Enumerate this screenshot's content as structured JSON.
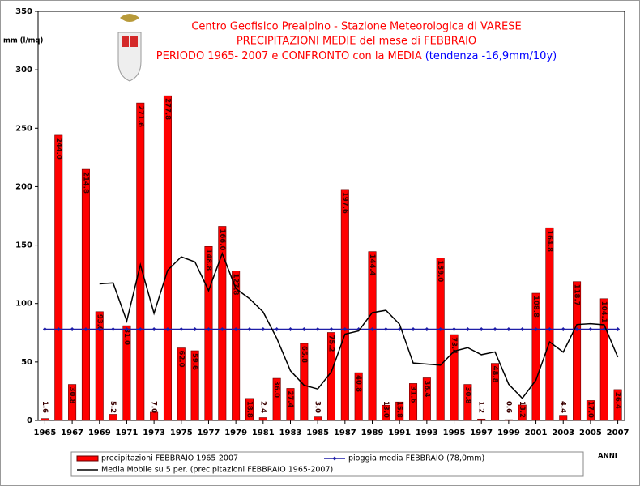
{
  "chart_data": {
    "type": "bar",
    "title": [
      "Centro Geofisico Prealpino - Stazione Meteorologica di VARESE",
      "PRECIPITAZIONI MEDIE del mese di FEBBRAIO"
    ],
    "period": "PERIODO 1965- 2007 e CONFRONTO con la MEDIA",
    "trend": "(tendenza -16,9mm/10y)",
    "y_label": "mm (l/mq)",
    "x_label": "ANNI",
    "x": [
      1965,
      1966,
      1967,
      1968,
      1969,
      1970,
      1971,
      1972,
      1973,
      1974,
      1975,
      1976,
      1977,
      1978,
      1979,
      1980,
      1981,
      1982,
      1983,
      1984,
      1985,
      1986,
      1987,
      1988,
      1989,
      1990,
      1991,
      1992,
      1993,
      1994,
      1995,
      1996,
      1997,
      1998,
      1999,
      2000,
      2001,
      2002,
      2003,
      2004,
      2005,
      2006,
      2007
    ],
    "xlim": [
      1964.5,
      2007.5
    ],
    "xticks": [
      1965,
      1967,
      1969,
      1971,
      1973,
      1975,
      1977,
      1979,
      1981,
      1983,
      1985,
      1987,
      1989,
      1991,
      1993,
      1995,
      1997,
      1999,
      2001,
      2003,
      2005,
      2007
    ],
    "ylim": [
      0,
      350
    ],
    "yticks": [
      0,
      50,
      100,
      150,
      200,
      250,
      300,
      350
    ],
    "series": [
      {
        "name": "precipitazioni FEBBRAIO 1965-2007",
        "color": "#ff0000",
        "type": "bar",
        "values": [
          1.6,
          244.0,
          30.8,
          214.8,
          93.0,
          5.2,
          81.0,
          271.6,
          7.0,
          277.8,
          62.0,
          59.6,
          148.8,
          166.0,
          127.8,
          18.8,
          2.4,
          36.0,
          27.4,
          65.8,
          3.0,
          75.2,
          197.6,
          40.8,
          144.4,
          13.0,
          15.8,
          31.6,
          36.4,
          139.0,
          73.4,
          30.8,
          1.2,
          48.8,
          0.6,
          13.2,
          108.8,
          164.8,
          4.4,
          118.7,
          17.0,
          104.1,
          26.4
        ],
        "value_labels": [
          "1.6",
          "244.0",
          "30.8",
          "214.8",
          "93.0",
          "5.2",
          "81.0",
          "271.6",
          "7.0",
          "277.8",
          "62.0",
          "59.6",
          "148.8",
          "166.0",
          "127.8",
          "18.8",
          "2.4",
          "36.0",
          "27.4",
          "65.8",
          "3.0",
          "75.2",
          "197.6",
          "40.8",
          "144.4",
          "13.0",
          "15.8",
          "31.6",
          "36.4",
          "139.0",
          "73.4",
          "30.8",
          "1.2",
          "48.8",
          "0.6",
          "13.2",
          "108.8",
          "164.8",
          "4.4",
          "118.7",
          "17.0",
          "104.1",
          "26.4"
        ]
      },
      {
        "name": "pioggia media FEBBRAIO (78,0mm)",
        "color": "#1f1fa8",
        "type": "line",
        "marker": true,
        "values": [
          78,
          78,
          78,
          78,
          78,
          78,
          78,
          78,
          78,
          78,
          78,
          78,
          78,
          78,
          78,
          78,
          78,
          78,
          78,
          78,
          78,
          78,
          78,
          78,
          78,
          78,
          78,
          78,
          78,
          78,
          78,
          78,
          78,
          78,
          78,
          78,
          78,
          78,
          78,
          78,
          78,
          78,
          78
        ]
      },
      {
        "name": "Media Mobile su 5 per. (precipitazioni FEBBRAIO 1965-2007)",
        "color": "#000000",
        "type": "line",
        "values": [
          null,
          null,
          null,
          null,
          116.8,
          117.6,
          85.0,
          133.1,
          91.6,
          128.5,
          139.9,
          135.6,
          111.0,
          142.8,
          112.8,
          104.2,
          92.8,
          70.2,
          42.5,
          30.1,
          26.9,
          41.5,
          73.8,
          76.5,
          92.2,
          94.2,
          82.3,
          49.1,
          48.2,
          47.2,
          59.2,
          62.2,
          56.2,
          58.6,
          31.0,
          18.9,
          34.5,
          67.2,
          58.4,
          82.0,
          82.7,
          81.8,
          54.1
        ]
      }
    ]
  }
}
